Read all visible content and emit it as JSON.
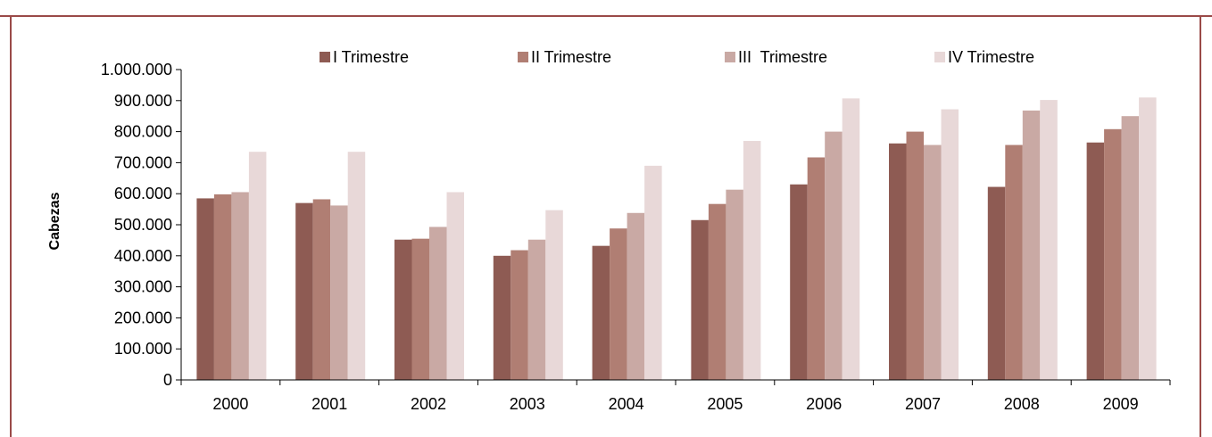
{
  "chart_data": {
    "type": "bar",
    "title": "",
    "xlabel": "",
    "ylabel": "Cabezas",
    "ylim": [
      0,
      1000000
    ],
    "y_ticks": [
      "0",
      "100.000",
      "200.000",
      "300.000",
      "400.000",
      "500.000",
      "600.000",
      "700.000",
      "800.000",
      "900.000",
      "1.000.000"
    ],
    "y_tick_values": [
      0,
      100000,
      200000,
      300000,
      400000,
      500000,
      600000,
      700000,
      800000,
      900000,
      1000000
    ],
    "categories": [
      "2000",
      "2001",
      "2002",
      "2003",
      "2004",
      "2005",
      "2006",
      "2007",
      "2008",
      "2009"
    ],
    "legend_position": "top",
    "grid": false,
    "frame_color": "#9a4a48",
    "series": [
      {
        "name": "I Trimestre",
        "color": "#8e5b53",
        "values": [
          585000,
          570000,
          452000,
          400000,
          432000,
          515000,
          630000,
          762000,
          622000,
          765000
        ]
      },
      {
        "name": "II Trimestre",
        "color": "#b07e73",
        "values": [
          598000,
          582000,
          455000,
          418000,
          488000,
          567000,
          717000,
          800000,
          757000,
          808000
        ]
      },
      {
        "name": "III  Trimestre",
        "color": "#c9a9a4",
        "values": [
          605000,
          562000,
          493000,
          452000,
          538000,
          613000,
          800000,
          757000,
          868000,
          850000
        ]
      },
      {
        "name": "IV Trimestre",
        "color": "#e8d8d8",
        "values": [
          735000,
          735000,
          605000,
          547000,
          690000,
          770000,
          907000,
          872000,
          902000,
          910000
        ]
      }
    ]
  }
}
